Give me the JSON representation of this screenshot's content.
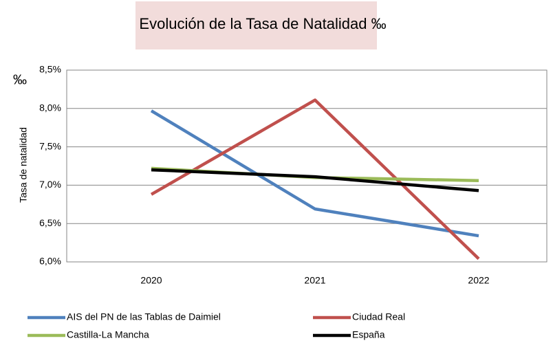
{
  "chart_data": {
    "type": "line",
    "title": "Evolución de la Tasa de Natalidad ‰",
    "annotation": "‰",
    "y_label": "Tasa de natalidad",
    "categories": [
      "2020",
      "2021",
      "2022"
    ],
    "series": [
      {
        "name": "AIS del PN de las Tablas de Daimiel",
        "color": "#4f81bd",
        "values": [
          7.97,
          6.69,
          6.34
        ]
      },
      {
        "name": "Ciudad Real",
        "color": "#c0504d",
        "values": [
          6.88,
          8.11,
          6.04
        ]
      },
      {
        "name": "Castilla-La Mancha",
        "color": "#9bbb59",
        "values": [
          7.22,
          7.1,
          7.06
        ]
      },
      {
        "name": "España",
        "color": "#000000",
        "values": [
          7.2,
          7.11,
          6.93
        ]
      }
    ],
    "ylim": [
      6.0,
      8.5
    ],
    "yticks": [
      {
        "value": 6.0,
        "label": "6,0%"
      },
      {
        "value": 6.5,
        "label": "6,5%"
      },
      {
        "value": 7.0,
        "label": "7,0%"
      },
      {
        "value": 7.5,
        "label": "7,5%"
      },
      {
        "value": 8.0,
        "label": "8,0%"
      },
      {
        "value": 8.5,
        "label": "8,5%"
      }
    ],
    "grid": true
  }
}
